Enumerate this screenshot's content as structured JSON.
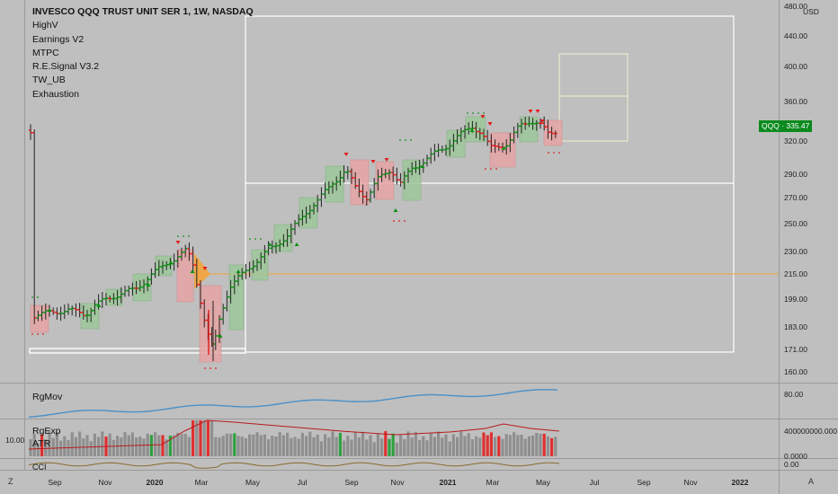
{
  "legend": {
    "title": "INVESCO QQQ TRUST UNIT SER 1, 1W, NASDAQ",
    "indicators": [
      "HighV",
      "Earnings V2",
      "MTPC",
      "R.E.Signal V3.2",
      "TW_UB",
      "Exhaustion"
    ]
  },
  "price_axis": {
    "unit": "USD",
    "ticks": [
      "480.00",
      "440.00",
      "400.00",
      "360.00",
      "320.00",
      "290.00",
      "270.00",
      "250.00",
      "230.00",
      "215.00",
      "199.00",
      "183.00",
      "171.00",
      "160.00"
    ]
  },
  "price_badge": {
    "symbol": "QQQ",
    "value": "335.47",
    "label": "QQQ · 335.47",
    "color": "#0b8a1e"
  },
  "panes": {
    "rgmov": {
      "label": "RgMov",
      "axis": "80.00"
    },
    "rgexp": {
      "label": "RgExp",
      "left_value": "10.00",
      "axis_top": "400000000.000",
      "axis_bottom": "0.0000"
    },
    "atr": {
      "label": "ATR"
    },
    "cci": {
      "label": "CCI",
      "axis": "0.00"
    }
  },
  "time_axis": {
    "labels": [
      {
        "text": "Sep",
        "bold": false
      },
      {
        "text": "Nov",
        "bold": false
      },
      {
        "text": "2020",
        "bold": true
      },
      {
        "text": "Mar",
        "bold": false
      },
      {
        "text": "May",
        "bold": false
      },
      {
        "text": "Jul",
        "bold": false
      },
      {
        "text": "Sep",
        "bold": false
      },
      {
        "text": "Nov",
        "bold": false
      },
      {
        "text": "2021",
        "bold": true
      },
      {
        "text": "Mar",
        "bold": false
      },
      {
        "text": "May",
        "bold": false
      },
      {
        "text": "Jul",
        "bold": false
      },
      {
        "text": "Sep",
        "bold": false
      },
      {
        "text": "Nov",
        "bold": false
      },
      {
        "text": "2022",
        "bold": true
      }
    ]
  },
  "corners": {
    "left": "Z",
    "right": "A"
  },
  "colors": {
    "background": "#bfbfbf",
    "up": "#0d8f14",
    "down": "#e01b1b",
    "wick": "#222222",
    "orange_line": "#f3a33b",
    "rgmov_line": "#4a90c8",
    "atr_line": "#b81c1c",
    "cci_line": "#8a6a30",
    "box_green": "#9ec89a",
    "box_red": "#e6a4a4"
  }
}
